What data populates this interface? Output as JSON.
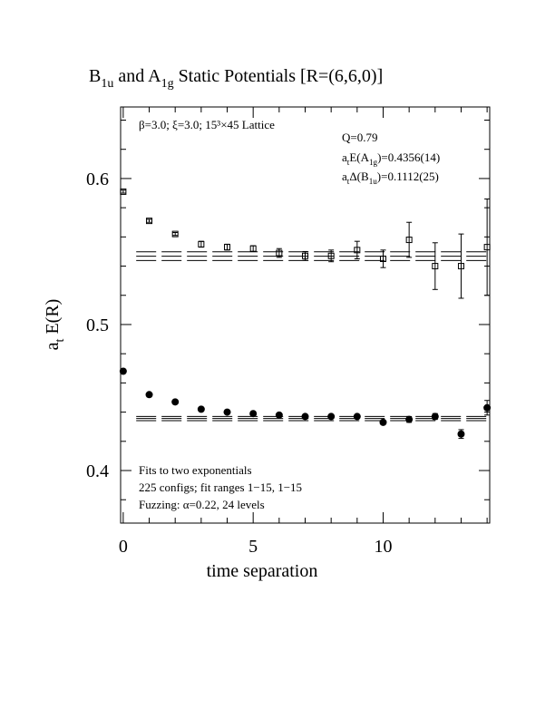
{
  "chart_data": {
    "type": "scatter",
    "title": [
      {
        "text": "B"
      },
      {
        "text": "1u",
        "sub": true
      },
      {
        "text": " and A"
      },
      {
        "text": "1g",
        "sub": true
      },
      {
        "text": " Static Potentials [R=(6,6,0)]"
      }
    ],
    "x_label": "time separation",
    "y_label": [
      {
        "text": "a"
      },
      {
        "text": "t",
        "sub": true
      },
      {
        "text": " E(R)"
      }
    ],
    "annotations_top": [
      [
        {
          "text": "β=3.0; ξ=3.0; 15³×45 Lattice"
        }
      ],
      [
        {
          "text": "Q=0.79"
        }
      ],
      [
        {
          "text": "a"
        },
        {
          "text": "t",
          "sub": true
        },
        {
          "text": "E(A"
        },
        {
          "text": "1g",
          "sub": true
        },
        {
          "text": ")=0.4356(14)"
        }
      ],
      [
        {
          "text": "a"
        },
        {
          "text": "t",
          "sub": true
        },
        {
          "text": "Δ(B"
        },
        {
          "text": "1u",
          "sub": true
        },
        {
          "text": ")=0.1112(25)"
        }
      ]
    ],
    "annotations_bottom": [
      "Fits to two exponentials",
      "225 configs; fit ranges 1−15, 1−15",
      "Fuzzing: α=0.22, 24 levels"
    ],
    "xlim": [
      -0.1,
      14.1
    ],
    "ylim": [
      0.364,
      0.649
    ],
    "xticks": [
      0,
      5,
      10
    ],
    "yticks": [
      0.4,
      0.5,
      0.6
    ],
    "xminor": [
      1,
      2,
      3,
      4,
      6,
      7,
      8,
      9,
      11,
      12,
      13,
      14
    ],
    "yminor": [
      0.38,
      0.42,
      0.44,
      0.46,
      0.48,
      0.52,
      0.54,
      0.56,
      0.58,
      0.62,
      0.64
    ],
    "x": [
      0,
      1,
      2,
      3,
      4,
      5,
      6,
      7,
      8,
      9,
      10,
      11,
      12,
      13,
      14
    ],
    "series": [
      {
        "marker": "open-square",
        "color": "#000000",
        "values": [
          0.591,
          0.571,
          0.562,
          0.555,
          0.553,
          0.552,
          0.549,
          0.547,
          0.547,
          0.551,
          0.545,
          0.558,
          0.54,
          0.54,
          0.553
        ],
        "errors": [
          0.001,
          0.001,
          0.001,
          0.002,
          0.002,
          0.002,
          0.003,
          0.003,
          0.004,
          0.006,
          0.006,
          0.012,
          0.016,
          0.022,
          0.033
        ]
      },
      {
        "marker": "filled-circle",
        "color": "#000000",
        "values": [
          0.468,
          0.452,
          0.447,
          0.442,
          0.44,
          0.439,
          0.438,
          0.437,
          0.437,
          0.437,
          0.433,
          0.435,
          0.437,
          0.425,
          0.443
        ],
        "errors": [
          0.001,
          0.001,
          0.001,
          0.001,
          0.001,
          0.001,
          0.001,
          0.001,
          0.001,
          0.001,
          0.001,
          0.002,
          0.002,
          0.003,
          0.005
        ]
      }
    ],
    "fit_range": [
      0.5,
      14.1
    ],
    "fit_lines": [
      {
        "values": [
          0.5438,
          0.5468,
          0.5498
        ]
      },
      {
        "values": [
          0.4342,
          0.4356,
          0.437
        ]
      }
    ]
  }
}
